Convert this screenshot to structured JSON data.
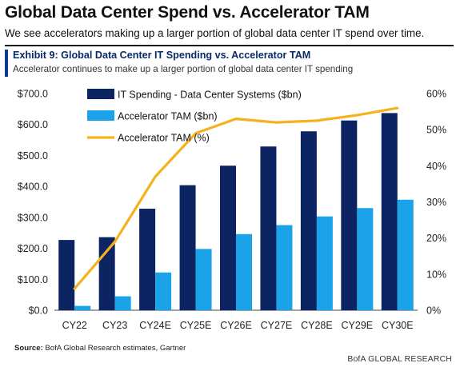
{
  "header": {
    "title": "Global Data Center Spend vs. Accelerator TAM",
    "subtitle": "We see accelerators making up a larger portion of global data center IT spend over time."
  },
  "exhibit": {
    "title": "Exhibit 9: Global Data Center IT Spending vs. Accelerator TAM",
    "subtitle": "Accelerator continues to make up a larger portion of global data center IT spending"
  },
  "footer": {
    "source_label": "Source:",
    "source_text": "BofA Global Research estimates, Gartner",
    "brand": "BofA GLOBAL RESEARCH"
  },
  "colors": {
    "it_spending": "#0d2463",
    "accelerator_tam": "#1aa3e8",
    "accelerator_pct": "#f5b21c",
    "axis": "#444444"
  },
  "chart_data": {
    "type": "bar",
    "categories": [
      "CY22",
      "CY23",
      "CY24E",
      "CY25E",
      "CY26E",
      "CY27E",
      "CY28E",
      "CY29E",
      "CY30E"
    ],
    "series": [
      {
        "name": "IT Spending - Data Center Systems ($bn)",
        "kind": "bar",
        "axis": "left",
        "values": [
          227,
          236,
          328,
          404,
          467,
          529,
          578,
          613,
          637
        ]
      },
      {
        "name": "Accelerator TAM ($bn)",
        "kind": "bar",
        "axis": "left",
        "values": [
          14,
          45,
          122,
          198,
          246,
          275,
          303,
          330,
          357
        ]
      },
      {
        "name": "Accelerator TAM (%)",
        "kind": "line",
        "axis": "right",
        "values": [
          6,
          19,
          37,
          49,
          53,
          52,
          52.5,
          54,
          56
        ]
      }
    ],
    "y_left": {
      "min": 0,
      "max": 700,
      "ticks": [
        0,
        100,
        200,
        300,
        400,
        500,
        600,
        700
      ],
      "tick_labels": [
        "$0.0",
        "$100.0",
        "$200.0",
        "$300.0",
        "$400.0",
        "$500.0",
        "$600.0",
        "$700.0"
      ]
    },
    "y_right": {
      "min": 0,
      "max": 60,
      "ticks": [
        0,
        10,
        20,
        30,
        40,
        50,
        60
      ],
      "tick_labels": [
        "0%",
        "10%",
        "20%",
        "30%",
        "40%",
        "50%",
        "60%"
      ]
    },
    "legend_position": "top-left",
    "grid": false
  }
}
